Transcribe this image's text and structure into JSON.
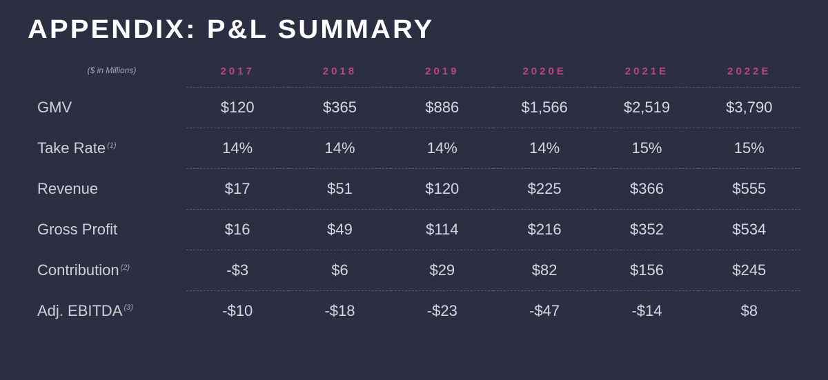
{
  "title": "APPENDIX: P&L SUMMARY",
  "units_note": "($ in Millions)",
  "colors": {
    "background": "#2c2f42",
    "title": "#ffffff",
    "year_header": "#b6477f",
    "row_label": "#cfd0d8",
    "value_text": "#d6d7df",
    "divider": "#575a6e",
    "units_note": "#a7a9b6"
  },
  "typography": {
    "title_fontsize": 38,
    "title_letter_spacing": 3,
    "year_fontsize": 15,
    "year_letter_spacing": 4,
    "label_fontsize": 22,
    "value_fontsize": 22,
    "units_fontsize": 12
  },
  "table": {
    "type": "table",
    "years": [
      "2017",
      "2018",
      "2019",
      "2020E",
      "2021E",
      "2022E"
    ],
    "rows": [
      {
        "label": "GMV",
        "footnote": "",
        "values": [
          "$120",
          "$365",
          "$886",
          "$1,566",
          "$2,519",
          "$3,790"
        ]
      },
      {
        "label": "Take Rate",
        "footnote": "(1)",
        "values": [
          "14%",
          "14%",
          "14%",
          "14%",
          "15%",
          "15%"
        ]
      },
      {
        "label": "Revenue",
        "footnote": "",
        "values": [
          "$17",
          "$51",
          "$120",
          "$225",
          "$366",
          "$555"
        ]
      },
      {
        "label": "Gross Profit",
        "footnote": "",
        "values": [
          "$16",
          "$49",
          "$114",
          "$216",
          "$352",
          "$534"
        ]
      },
      {
        "label": "Contribution",
        "footnote": "(2)",
        "values": [
          "-$3",
          "$6",
          "$29",
          "$82",
          "$156",
          "$245"
        ]
      },
      {
        "label": "Adj. EBITDA",
        "footnote": "(3)",
        "values": [
          "-$10",
          "-$18",
          "-$23",
          "-$47",
          "-$14",
          "$8"
        ]
      }
    ]
  }
}
